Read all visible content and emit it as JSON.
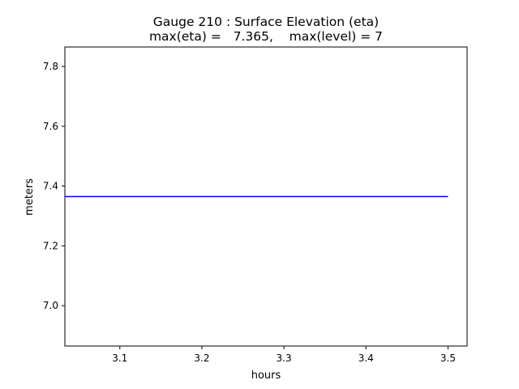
{
  "chart_data": {
    "type": "line",
    "title": "Gauge 210 : Surface Elevation (eta)",
    "subtitle": "max(eta) =   7.365,    max(level) = 7",
    "xlabel": "hours",
    "ylabel": "meters",
    "xlim": [
      3.033,
      3.5233
    ],
    "ylim": [
      6.865,
      7.865
    ],
    "xticks": [
      "3.1",
      "3.2",
      "3.3",
      "3.4",
      "3.5"
    ],
    "yticks": [
      "7.0",
      "7.2",
      "7.4",
      "7.6",
      "7.8"
    ],
    "grid": false,
    "series": [
      {
        "color": "#0000ff",
        "x": [
          3.033,
          3.5
        ],
        "y": [
          7.365,
          7.365
        ]
      }
    ]
  }
}
